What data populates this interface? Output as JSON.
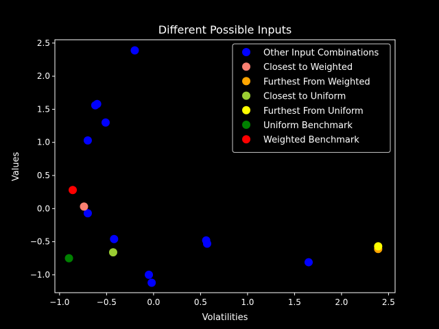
{
  "chart_data": {
    "type": "scatter",
    "title": "Different Possible Inputs",
    "xlabel": "Volatilities",
    "ylabel": "Values",
    "xlim": [
      -1.05,
      2.57
    ],
    "ylim": [
      -1.27,
      2.55
    ],
    "xticks": [
      -1.0,
      -0.5,
      0.0,
      0.5,
      1.0,
      1.5,
      2.0,
      2.5
    ],
    "xtick_labels": [
      "−1.0",
      "−0.5",
      "0.0",
      "0.5",
      "1.0",
      "1.5",
      "2.0",
      "2.5"
    ],
    "yticks": [
      -1.0,
      -0.5,
      0.0,
      0.5,
      1.0,
      1.5,
      2.0,
      2.5
    ],
    "ytick_labels": [
      "−1.0",
      "−0.5",
      "0.0",
      "0.5",
      "1.0",
      "1.5",
      "2.0",
      "2.5"
    ],
    "grid": false,
    "legend_position": "top-right",
    "series": [
      {
        "name": "Other Input Combinations",
        "color": "#0000ff",
        "points": [
          {
            "x": -0.2,
            "y": 2.39
          },
          {
            "x": -0.6,
            "y": 1.58
          },
          {
            "x": -0.62,
            "y": 1.56
          },
          {
            "x": -0.51,
            "y": 1.3
          },
          {
            "x": -0.7,
            "y": 1.03
          },
          {
            "x": -0.7,
            "y": -0.07
          },
          {
            "x": -0.42,
            "y": -0.46
          },
          {
            "x": 0.56,
            "y": -0.48
          },
          {
            "x": 0.57,
            "y": -0.53
          },
          {
            "x": 1.65,
            "y": -0.81
          },
          {
            "x": -0.05,
            "y": -1.0
          },
          {
            "x": -0.02,
            "y": -1.12
          }
        ]
      },
      {
        "name": "Closest to Weighted",
        "color": "#fa8072",
        "points": [
          {
            "x": -0.74,
            "y": 0.03
          }
        ]
      },
      {
        "name": "Furthest From Weighted",
        "color": "#ffa500",
        "points": [
          {
            "x": 2.39,
            "y": -0.61
          }
        ]
      },
      {
        "name": "Closest to Uniform",
        "color": "#9acd32",
        "points": [
          {
            "x": -0.43,
            "y": -0.66
          }
        ]
      },
      {
        "name": "Furthest From Uniform",
        "color": "#ffff00",
        "points": [
          {
            "x": 2.39,
            "y": -0.57
          }
        ]
      },
      {
        "name": "Uniform Benchmark",
        "color": "#008000",
        "points": [
          {
            "x": -0.9,
            "y": -0.75
          }
        ]
      },
      {
        "name": "Weighted Benchmark",
        "color": "#ff0000",
        "points": [
          {
            "x": -0.86,
            "y": 0.28
          }
        ]
      }
    ]
  }
}
